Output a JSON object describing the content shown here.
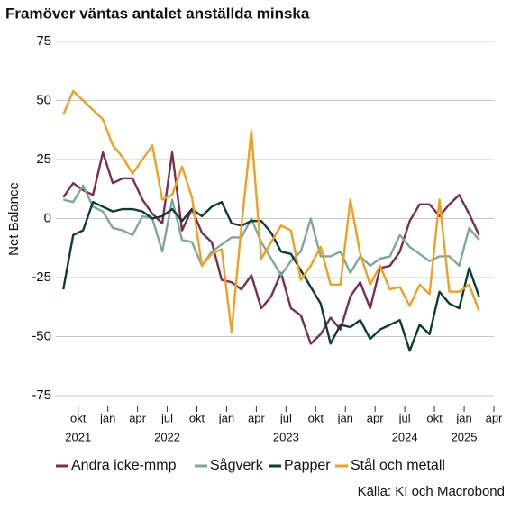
{
  "chart_data": {
    "type": "line",
    "title": "Framöver väntas antalet anställda minska",
    "ylabel": "Net Balance",
    "source": "Källa: KI och Macrobond",
    "x": [
      0,
      1,
      2,
      3,
      4,
      5,
      6,
      7,
      8,
      9,
      10,
      11,
      12,
      13,
      14,
      15,
      16,
      17,
      18,
      19,
      20,
      21,
      22,
      23,
      24,
      25,
      26,
      27,
      28,
      29,
      30,
      31,
      32,
      33,
      34,
      35,
      36,
      37,
      38,
      39,
      40,
      41,
      42
    ],
    "xlim": [
      -0.75,
      43.5
    ],
    "xticks": [
      {
        "value": 1.5,
        "label": "okt"
      },
      {
        "value": 4.5,
        "label": "jan"
      },
      {
        "value": 7.5,
        "label": "apr"
      },
      {
        "value": 10.5,
        "label": "jul"
      },
      {
        "value": 13.5,
        "label": "okt"
      },
      {
        "value": 16.5,
        "label": "jan"
      },
      {
        "value": 19.5,
        "label": "apr"
      },
      {
        "value": 22.5,
        "label": "jul"
      },
      {
        "value": 25.5,
        "label": "okt"
      },
      {
        "value": 28.5,
        "label": "jan"
      },
      {
        "value": 31.5,
        "label": "apr"
      },
      {
        "value": 34.5,
        "label": "jul"
      },
      {
        "value": 37.5,
        "label": "okt"
      },
      {
        "value": 40.5,
        "label": "jan"
      },
      {
        "value": 43.5,
        "label": "apr"
      }
    ],
    "xtick_years": [
      {
        "value": 1.5,
        "label": "2021"
      },
      {
        "value": 10.5,
        "label": "2022"
      },
      {
        "value": 22.5,
        "label": "2023"
      },
      {
        "value": 34.5,
        "label": "2024"
      },
      {
        "value": 40.5,
        "label": "2025"
      }
    ],
    "ylim": [
      -75,
      75
    ],
    "yticks": [
      75,
      50,
      25,
      0,
      -25,
      -50,
      -75
    ],
    "grid": true,
    "legend": "bottom",
    "series": [
      {
        "name": "Andra icke-mmp",
        "color": "#7b2d52",
        "values": [
          9,
          15,
          12,
          10,
          28,
          15,
          17,
          17,
          8,
          2,
          -2,
          28,
          -5,
          4,
          -6,
          -10,
          -26,
          -27,
          -30,
          -24,
          -38,
          -33,
          -23,
          -38,
          -41,
          -53,
          -49,
          -42,
          -47,
          -33,
          -27,
          -38,
          -21,
          -20,
          -14,
          -1,
          6,
          6,
          1,
          6,
          10,
          2,
          -7
        ]
      },
      {
        "name": "Sågverk",
        "color": "#7fa89a",
        "values": [
          8,
          7,
          14,
          5,
          3,
          -4,
          -5,
          -7,
          1,
          0,
          -14,
          8,
          -9,
          -10,
          -20,
          -14,
          -11,
          -8,
          -8,
          0,
          -10,
          -17,
          -24,
          -18,
          -14,
          0,
          -16,
          -16,
          -14,
          -23,
          -16,
          -20,
          -17,
          -16,
          -7,
          -12,
          -15,
          -18,
          -16,
          -16,
          -20,
          -4,
          -9
        ]
      },
      {
        "name": "Papper",
        "color": "#0e3b3a",
        "values": [
          -30,
          -7,
          -5,
          7,
          5,
          3,
          4,
          4,
          3,
          0,
          1,
          4,
          -1,
          4,
          1,
          5,
          7,
          -2,
          -3,
          -1,
          -1,
          -6,
          -14,
          -15,
          -22,
          -29,
          -36,
          -53,
          -45,
          -46,
          -43,
          -51,
          -47,
          -45,
          -43,
          -56,
          -45,
          -49,
          -31,
          -36,
          -38,
          -21,
          -33
        ]
      },
      {
        "name": "Stål och metall",
        "color": "#f0a020",
        "values": [
          44,
          54,
          50,
          46,
          42,
          31,
          26,
          19,
          25,
          31,
          8,
          10,
          22,
          9,
          -20,
          -15,
          -13,
          -48,
          -3,
          37,
          -17,
          -10,
          -3,
          -5,
          -26,
          -20,
          -12,
          -28,
          -28,
          8,
          -15,
          -28,
          -20,
          -30,
          -29,
          -37,
          -28,
          -32,
          8,
          -31,
          -31,
          -28,
          -39
        ]
      }
    ]
  }
}
